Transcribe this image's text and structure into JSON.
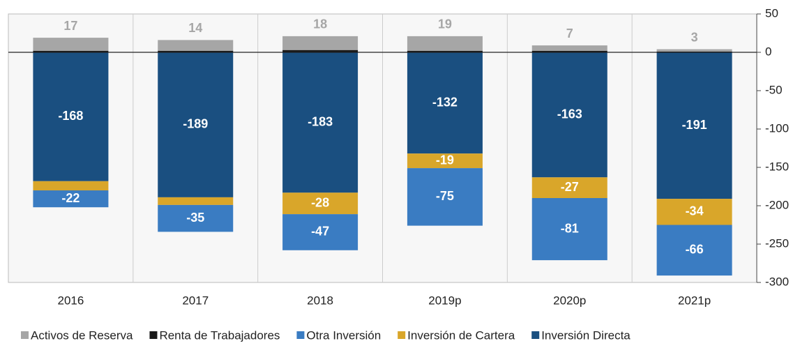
{
  "chart_data": {
    "type": "stacked_bar",
    "categories": [
      "2016",
      "2017",
      "2018",
      "2019p",
      "2020p",
      "2021p"
    ],
    "series": [
      {
        "name": "Activos de Reserva",
        "color": "#a6a6a6",
        "values": [
          17,
          14,
          18,
          19,
          7,
          3
        ]
      },
      {
        "name": "Renta de Trabajadores",
        "color": "#1a1a1a",
        "values": [
          2,
          2,
          3,
          2,
          2,
          1
        ],
        "value_labels": [
          null,
          null,
          null,
          null,
          null,
          null
        ]
      },
      {
        "name": "Otra Inversión",
        "color": "#3a7cc2",
        "values": [
          -22,
          -35,
          -47,
          -75,
          -81,
          -66
        ]
      },
      {
        "name": "Inversión de Cartera",
        "color": "#d9a62a",
        "values": [
          -12,
          -10,
          -28,
          -19,
          -27,
          -34
        ],
        "value_labels": [
          null,
          null,
          "-28",
          "-19",
          "-27",
          "-34"
        ]
      },
      {
        "name": "Inversión Directa",
        "color": "#1a4f80",
        "values": [
          -168,
          -189,
          -183,
          -132,
          -163,
          -191
        ]
      }
    ],
    "ylim": [
      -300,
      50
    ],
    "yticks": [
      -300,
      -250,
      -200,
      -150,
      -100,
      -50,
      0,
      50
    ],
    "y_axis_side": "right",
    "legend": "bottom"
  }
}
